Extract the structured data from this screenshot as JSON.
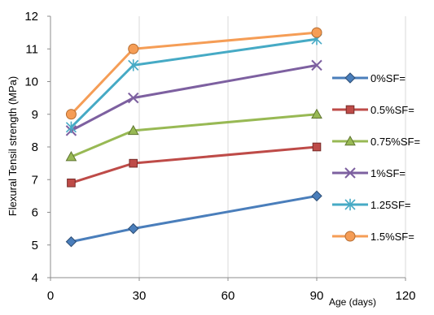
{
  "chart_data": {
    "type": "line",
    "title": "",
    "xlabel": "Age (days)",
    "ylabel": "Flexural Tensil strength (MPa)",
    "xlim": [
      0,
      120
    ],
    "ylim": [
      4,
      12
    ],
    "x_ticks": [
      0,
      30,
      60,
      90,
      120
    ],
    "y_ticks": [
      4,
      5,
      6,
      7,
      8,
      9,
      10,
      11,
      12
    ],
    "grid": "vertical",
    "legend_position": "right",
    "x": [
      7,
      28,
      90
    ],
    "series": [
      {
        "name": "0%SF=",
        "values": [
          5.1,
          5.5,
          6.5
        ],
        "color": "#4a7ebb",
        "marker": "diamond"
      },
      {
        "name": "0.5%SF=",
        "values": [
          6.9,
          7.5,
          8.0
        ],
        "color": "#be4b48",
        "marker": "square"
      },
      {
        "name": "0.75%SF=",
        "values": [
          7.7,
          8.5,
          9.0
        ],
        "color": "#98b954",
        "marker": "triangle"
      },
      {
        "name": "1%SF=",
        "values": [
          8.5,
          9.5,
          10.5
        ],
        "color": "#7d60a0",
        "marker": "x"
      },
      {
        "name": "1.25SF=",
        "values": [
          8.6,
          10.5,
          11.3
        ],
        "color": "#46aac5",
        "marker": "star"
      },
      {
        "name": "1.5%SF=",
        "values": [
          9.0,
          11.0,
          11.5
        ],
        "color": "#f59d56",
        "marker": "circle"
      }
    ]
  }
}
